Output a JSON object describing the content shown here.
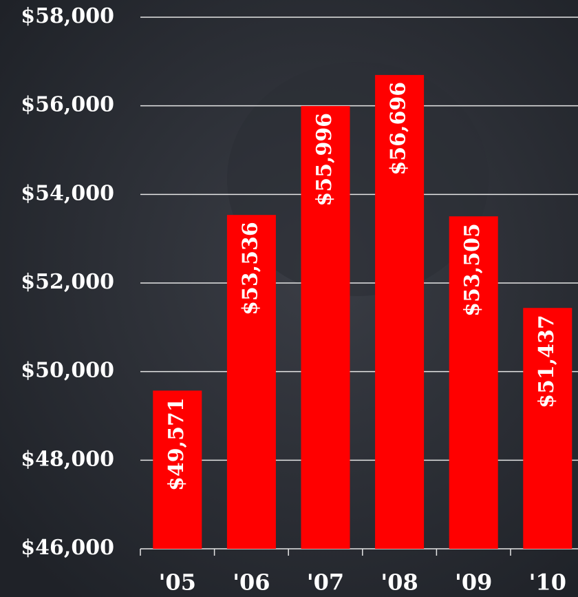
{
  "chart_data": {
    "type": "bar",
    "categories": [
      "'05",
      "'06",
      "'07",
      "'08",
      "'09",
      "'10"
    ],
    "values": [
      49571,
      53536,
      55996,
      56696,
      53505,
      51437
    ],
    "value_labels": [
      "$49,571",
      "$53,536",
      "$55,996",
      "$56,696",
      "$53,505",
      "$51,437"
    ],
    "color": "#ff0000",
    "ylim": [
      46000,
      58000
    ],
    "yticks": [
      {
        "value": 46000,
        "label": "$46,000"
      },
      {
        "value": 48000,
        "label": "$48,000"
      },
      {
        "value": 50000,
        "label": "$50,000"
      },
      {
        "value": 52000,
        "label": "$52,000"
      },
      {
        "value": 54000,
        "label": "$54,000"
      },
      {
        "value": 56000,
        "label": "$56,000"
      },
      {
        "value": 58000,
        "label": "$58,000"
      }
    ],
    "grid": true
  }
}
